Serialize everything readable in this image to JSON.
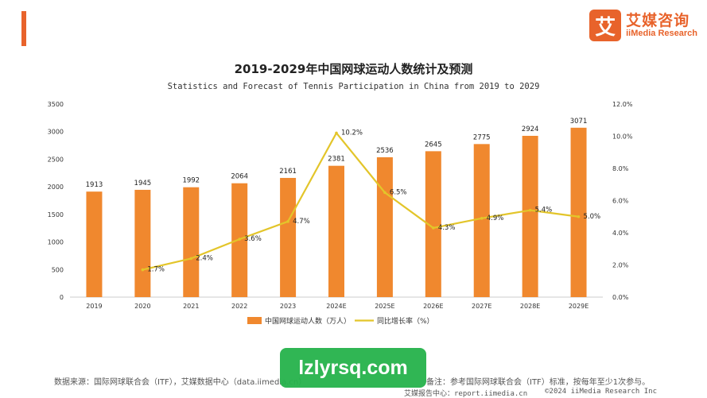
{
  "header": {
    "logo_cn": "艾媒咨询",
    "logo_en": "iiMedia Research",
    "logo_mark": "艾"
  },
  "colors": {
    "bar": "#f0882e",
    "line": "#e3c52a",
    "accent": "#e8632b"
  },
  "chart_data": {
    "type": "bar",
    "title": "2019-2029年中国网球运动人数统计及预测",
    "subtitle": "Statistics and Forecast of Tennis Participation in China from 2019 to 2029",
    "categories": [
      "2019",
      "2020",
      "2021",
      "2022",
      "2023",
      "2024E",
      "2025E",
      "2026E",
      "2027E",
      "2028E",
      "2029E"
    ],
    "series": [
      {
        "name": "中国网球运动人数（万人）",
        "type": "bar",
        "values": [
          1913,
          1945,
          1992,
          2064,
          2161,
          2381,
          2536,
          2645,
          2775,
          2924,
          3071
        ],
        "labels": [
          "1913",
          "1945",
          "1992",
          "2064",
          "2161",
          "2381",
          "2536",
          "2645",
          "2775",
          "2924",
          "3071"
        ]
      },
      {
        "name": "同比增长率（%）",
        "type": "line",
        "axis": "right",
        "values": [
          null,
          1.7,
          2.4,
          3.6,
          4.7,
          10.2,
          6.5,
          4.3,
          4.9,
          5.4,
          5.0
        ],
        "labels": [
          "",
          "1.7%",
          "2.4%",
          "3.6%",
          "4.7%",
          "10.2%",
          "6.5%",
          "4.3%",
          "4.9%",
          "5.4%",
          "5.0%"
        ]
      }
    ],
    "ylim": [
      0,
      3500
    ],
    "yticks": [
      0,
      500,
      1000,
      1500,
      2000,
      2500,
      3000,
      3500
    ],
    "ytick_labels": [
      "0",
      "500",
      "1000",
      "1500",
      "2000",
      "2500",
      "3000",
      "3500"
    ],
    "y2lim": [
      0,
      12
    ],
    "y2ticks": [
      0,
      2,
      4,
      6,
      8,
      10,
      12
    ],
    "y2tick_labels": [
      "0.0%",
      "2.0%",
      "4.0%",
      "6.0%",
      "8.0%",
      "10.0%",
      "12.0%"
    ],
    "legend_position": "bottom",
    "grid": false
  },
  "footer": {
    "source": "数据来源：国际网球联合会（ITF），艾媒数据中心（data.iimedia.cn）",
    "note": "备注：参考国际网球联合会（ITF）标准，按每年至少1次参与。",
    "site": "艾媒报告中心：report.iimedia.cn",
    "copyright": "©2024  iiMedia Research  Inc"
  },
  "watermark": "lzlyrsq.com"
}
